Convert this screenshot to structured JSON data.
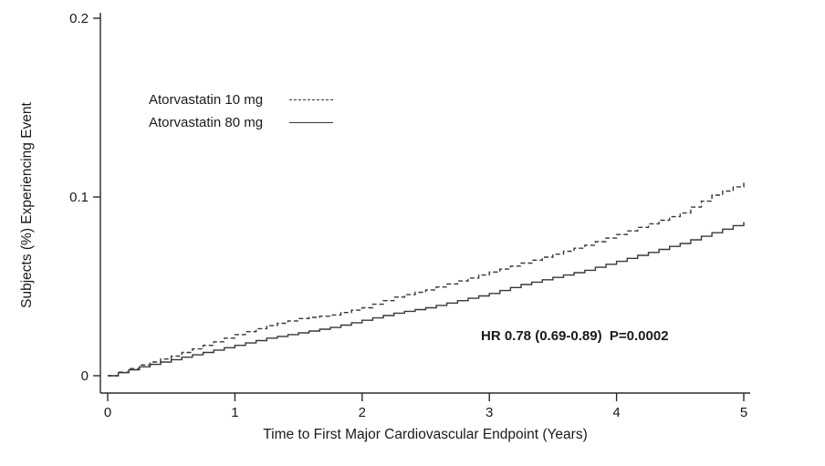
{
  "figure": {
    "y_axis_title": "Subjects (%) Experiencing Event",
    "x_axis_title": "Time to First Major Cardiovascular Endpoint (Years)",
    "annotation": "HR 0.78 (0.69-0.89)  P=0.0002",
    "legend": [
      {
        "label": "Atorvastatin 10 mg",
        "style": "dashed"
      },
      {
        "label": "Atorvastatin 80 mg",
        "style": "solid"
      }
    ]
  },
  "colors": {
    "line": "#383838",
    "axis": "#2b2b2b",
    "text": "#1a1a1a",
    "background": "#ffffff"
  },
  "chart_data": {
    "type": "line",
    "title": "",
    "xlabel": "Time to First Major Cardiovascular Endpoint (Years)",
    "ylabel": "Subjects (%) Experiencing Event",
    "xlim": [
      0,
      5
    ],
    "ylim": [
      0,
      0.2
    ],
    "x_ticks": [
      0,
      1,
      2,
      3,
      4,
      5
    ],
    "x_tick_labels": [
      "0",
      "1",
      "2",
      "3",
      "4",
      "5"
    ],
    "y_ticks": [
      0,
      0.1,
      0.2
    ],
    "y_tick_labels": [
      "0",
      "0.1",
      "0.2"
    ],
    "grid": false,
    "legend_position": "upper-left-inside",
    "annotation": "HR 0.78 (0.69-0.89)  P=0.0002",
    "curve_style": "kaplan-meier-step",
    "series": [
      {
        "name": "Atorvastatin 10 mg",
        "line_style": "dashed",
        "color": "#383838",
        "x": [
          0,
          0.25,
          0.5,
          0.75,
          1,
          1.25,
          1.5,
          1.75,
          2,
          2.25,
          2.5,
          2.75,
          3,
          3.25,
          3.5,
          3.75,
          4,
          4.25,
          4.5,
          4.75,
          5
        ],
        "y": [
          0,
          0.006,
          0.011,
          0.017,
          0.023,
          0.028,
          0.032,
          0.034,
          0.038,
          0.044,
          0.048,
          0.053,
          0.058,
          0.063,
          0.068,
          0.073,
          0.079,
          0.085,
          0.091,
          0.101,
          0.108
        ]
      },
      {
        "name": "Atorvastatin 80 mg",
        "line_style": "solid",
        "color": "#383838",
        "x": [
          0,
          0.25,
          0.5,
          0.75,
          1,
          1.25,
          1.5,
          1.75,
          2,
          2.25,
          2.5,
          2.75,
          3,
          3.25,
          3.5,
          3.75,
          4,
          4.25,
          4.5,
          4.75,
          5
        ],
        "y": [
          0,
          0.005,
          0.009,
          0.013,
          0.017,
          0.021,
          0.024,
          0.027,
          0.031,
          0.035,
          0.038,
          0.042,
          0.046,
          0.051,
          0.055,
          0.059,
          0.064,
          0.069,
          0.074,
          0.08,
          0.086
        ]
      }
    ]
  }
}
